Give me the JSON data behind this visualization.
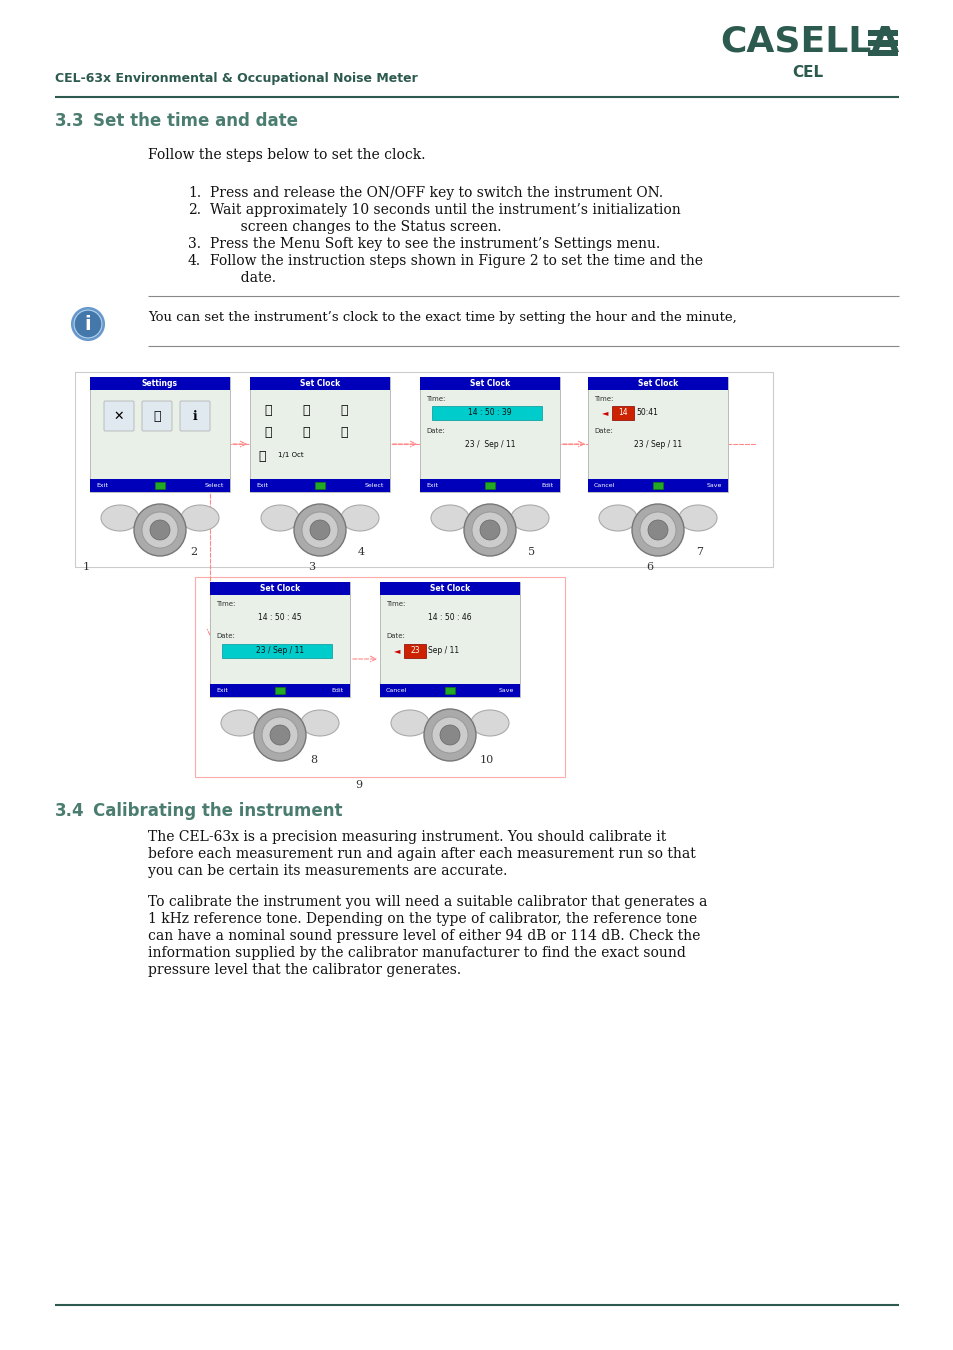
{
  "page_bg": "#ffffff",
  "header_text": "CEL-63x Environmental & Occupational Noise Meter",
  "header_color": "#2d5a4e",
  "brand_name": "CASELLA",
  "brand_sub": "CEL",
  "brand_color": "#2d5a4e",
  "section_number": "3.3",
  "section_title": "Set the time and date",
  "section_title_color": "#4a7c6f",
  "intro_text": "Follow the steps below to set the clock.",
  "steps": [
    "Press and release the ON/OFF key to switch the instrument ON.",
    "Wait approximately 10 seconds until the instrument’s initialization\n       screen changes to the Status screen.",
    "Press the Menu Soft key to see the instrument’s Settings menu.",
    "Follow the instruction steps shown in Figure 2 to set the time and the\n       date."
  ],
  "info_text": "You can set the instrument’s clock to the exact time by setting the hour and the minute,",
  "section2_number": "3.4",
  "section2_title": "Calibrating the instrument",
  "section2_title_color": "#4a7c6f",
  "para1_lines": [
    "The CEL-63x is a precision measuring instrument. You should calibrate it",
    "before each measurement run and again after each measurement run so that",
    "you can be certain its measurements are accurate."
  ],
  "para2_lines": [
    "To calibrate the instrument you will need a suitable calibrator that generates a",
    "1 kHz reference tone. Depending on the type of calibrator, the reference tone",
    "can have a nominal sound pressure level of either 94 dB or 114 dB. Check the",
    "information supplied by the calibrator manufacturer to find the exact sound",
    "pressure level that the calibrator generates."
  ],
  "dark_teal": "#2d5a4e",
  "teal_section": "#4a7c6f",
  "blue_bar": "#0000bb",
  "screen_bg": "#e8f0e8",
  "arrow_pink": "#ff8888",
  "arrow_red": "#cc0000"
}
